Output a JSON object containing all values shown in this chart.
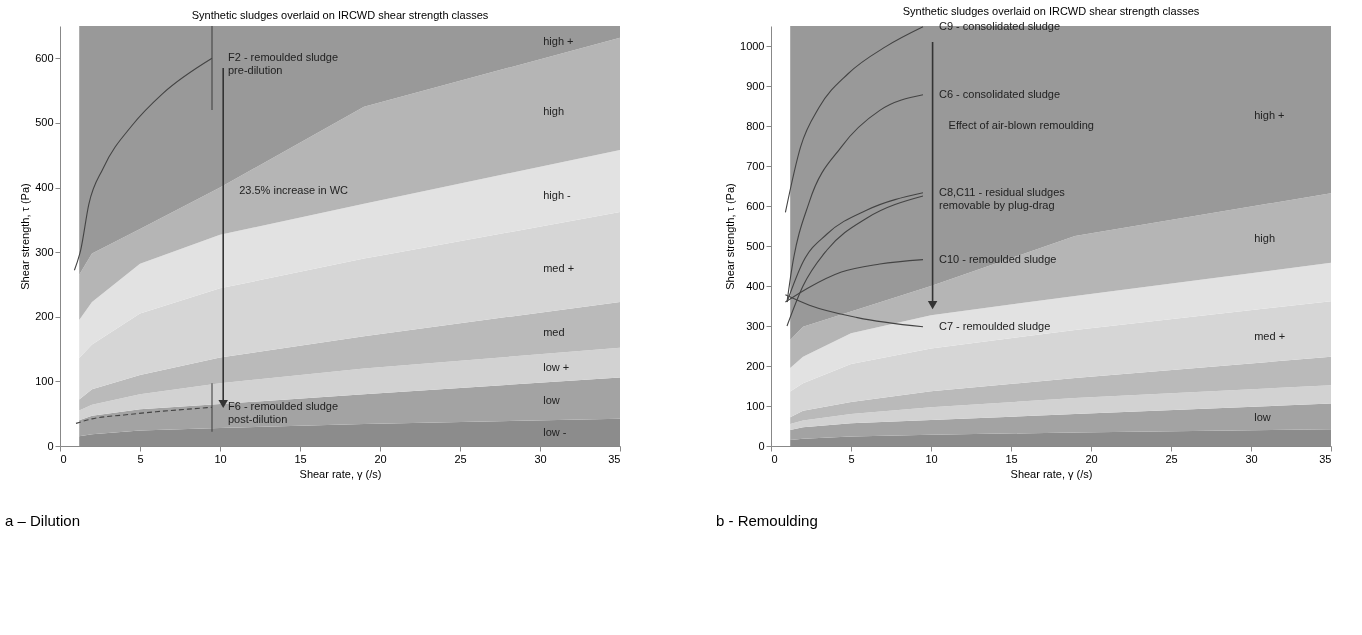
{
  "chart_data": [
    {
      "type": "area",
      "title": "Synthetic sludges overlaid on IRCWD shear strength classes",
      "xlabel": "Shear rate, γ (/s)",
      "ylabel": "Shear strength, τ (Pa)",
      "stacked": true,
      "grid": false,
      "x": [
        1.2,
        2,
        5,
        10,
        19,
        35
      ],
      "xlim": [
        0,
        35
      ],
      "xticks": [
        0,
        5,
        10,
        15,
        20,
        25,
        30,
        35
      ],
      "ylim": [
        0,
        650
      ],
      "yticks": [
        0,
        100,
        200,
        300,
        400,
        500,
        600
      ],
      "series": [
        {
          "name": "low -",
          "color": "#8c8c8c",
          "values": [
            15,
            18,
            24,
            28,
            34,
            42
          ]
        },
        {
          "name": "low",
          "color": "#a3a3a3",
          "values": [
            25,
            29,
            33,
            37,
            46,
            64
          ]
        },
        {
          "name": "low +",
          "color": "#d2d2d2",
          "values": [
            15,
            17,
            23,
            32,
            40,
            46
          ]
        },
        {
          "name": "med",
          "color": "#bababa",
          "values": [
            17,
            24,
            30,
            40,
            50,
            71
          ]
        },
        {
          "name": "med +",
          "color": "#d6d6d6",
          "values": [
            64,
            69,
            95,
            107,
            120,
            139
          ]
        },
        {
          "name": "high -",
          "color": "#e2e2e2",
          "values": [
            59,
            66,
            77,
            83,
            85,
            96
          ]
        },
        {
          "name": "high",
          "color": "#b5b5b5",
          "values": [
            70,
            75,
            54,
            73,
            150,
            174
          ]
        },
        {
          "name": "high +",
          "color": "#999999",
          "values": [
            385,
            352,
            314,
            250,
            125,
            18
          ]
        },
        {
          "type": "line",
          "color": "#444444",
          "x": [
            0.9,
            1.3,
            1.8,
            2.7,
            4.5,
            6.4,
            9.5
          ],
          "values": [
            272,
            304,
            374,
            430,
            496,
            545,
            600
          ],
          "errors": [
            null,
            null,
            null,
            null,
            null,
            null,
            [
              520,
              650
            ]
          ]
        },
        {
          "type": "line",
          "color": "#444444",
          "line_style": "dashed",
          "x": [
            1,
            2,
            4,
            6,
            8,
            9.5
          ],
          "values": [
            35,
            42,
            48,
            53,
            57,
            60
          ],
          "errors": [
            null,
            null,
            null,
            null,
            null,
            [
              22,
              97
            ]
          ]
        },
        {
          "type": "line",
          "color": "#333333",
          "x": [
            10.2,
            10.2
          ],
          "values": [
            585,
            65
          ]
        }
      ],
      "annotations": [
        {
          "text": "F2 - remoulded sludge\npre-dilution",
          "x": 9.5,
          "y": 600
        },
        {
          "text": "23.5% increase in WC",
          "x": 10.2,
          "y": 395
        },
        {
          "text": "F6 - remoulded sludge\npost-dilution",
          "x": 9.5,
          "y": 60
        },
        "a – Dilution"
      ]
    },
    {
      "type": "area",
      "title": "Synthetic sludges overlaid on IRCWD shear strength classes",
      "xlabel": "Shear rate, γ (/s)",
      "ylabel": "Shear strength, τ (Pa)",
      "stacked": true,
      "grid": false,
      "x": [
        1.2,
        2,
        5,
        10,
        19,
        35
      ],
      "xlim": [
        0,
        35
      ],
      "xticks": [
        0,
        5,
        10,
        15,
        20,
        25,
        30,
        35
      ],
      "ylim": [
        0,
        1050
      ],
      "yticks": [
        0,
        100,
        200,
        300,
        400,
        500,
        600,
        700,
        800,
        900,
        1000
      ],
      "series": [
        {
          "color": "#8c8c8c",
          "values": [
            15,
            18,
            24,
            28,
            34,
            42
          ]
        },
        {
          "name": "low",
          "color": "#a3a3a3",
          "values": [
            25,
            29,
            33,
            37,
            46,
            64
          ]
        },
        {
          "color": "#d2d2d2",
          "values": [
            15,
            17,
            23,
            32,
            40,
            46
          ]
        },
        {
          "color": "#bababa",
          "values": [
            17,
            24,
            30,
            40,
            50,
            71
          ]
        },
        {
          "name": "med +",
          "color": "#d6d6d6",
          "values": [
            64,
            69,
            95,
            107,
            120,
            139
          ]
        },
        {
          "color": "#e2e2e2",
          "values": [
            59,
            66,
            77,
            83,
            85,
            96
          ]
        },
        {
          "name": "high",
          "color": "#b5b5b5",
          "values": [
            70,
            75,
            54,
            73,
            150,
            174
          ]
        },
        {
          "name": "high +",
          "color": "#999999",
          "values": [
            785,
            752,
            714,
            650,
            525,
            418
          ]
        },
        {
          "type": "line",
          "color": "#444444",
          "x": [
            0.9,
            1.85,
            3.0,
            4.8,
            7.2,
            9.5
          ],
          "values": [
            584,
            748,
            846,
            930,
            999,
            1048
          ]
        },
        {
          "type": "line",
          "color": "#444444",
          "x": [
            1.0,
            1.3,
            2.4,
            4.4,
            6.8,
            9.5
          ],
          "values": [
            360,
            443,
            611,
            748,
            839,
            878
          ]
        },
        {
          "type": "line",
          "color": "#444444",
          "x": [
            1.0,
            2.0,
            3.5,
            6.0,
            9.5
          ],
          "values": [
            360,
            460,
            530,
            590,
            633
          ]
        },
        {
          "type": "line",
          "color": "#444444",
          "x": [
            1.0,
            2.0,
            3.5,
            6.0,
            9.5
          ],
          "values": [
            300,
            400,
            490,
            570,
            625
          ]
        },
        {
          "type": "line",
          "color": "#444444",
          "x": [
            0.9,
            2.4,
            4.4,
            6.8,
            9.5
          ],
          "values": [
            360,
            397,
            435,
            455,
            466
          ]
        },
        {
          "type": "line",
          "color": "#444444",
          "x": [
            0.9,
            2.4,
            5.4,
            9.5
          ],
          "values": [
            378,
            352,
            321,
            298
          ]
        },
        {
          "type": "line",
          "color": "#333333",
          "x": [
            10.1,
            10.1
          ],
          "values": [
            1010,
            352
          ]
        }
      ],
      "annotations": [
        {
          "text": "C9 - consolidated sludge",
          "x": 9.5,
          "y": 1048
        },
        {
          "text": "C6 - consolidated sludge",
          "x": 9.5,
          "y": 878
        },
        {
          "text": "Effect of air-blown remoulding",
          "x": 10.1,
          "y": 800
        },
        {
          "text": "C8,C11 - residual sludges\nremovable by plug-drag",
          "x": 9.5,
          "y": 633
        },
        {
          "text": "C10 - remoulded sludge",
          "x": 9.5,
          "y": 466
        },
        {
          "text": "C7 - remoulded sludge",
          "x": 9.5,
          "y": 298
        },
        "b - Remoulding"
      ]
    }
  ]
}
